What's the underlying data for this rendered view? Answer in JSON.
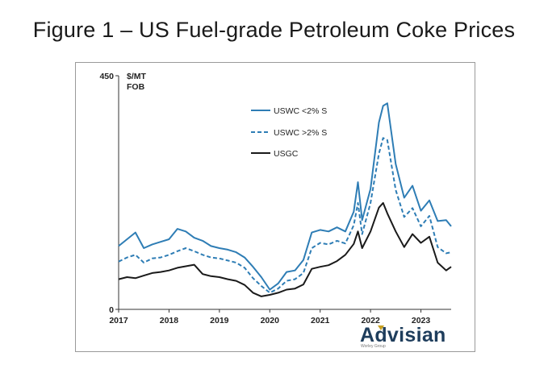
{
  "figure_title": "Figure 1 – US Fuel-grade Petroleum Coke Prices",
  "logo": {
    "text": "Advisian",
    "subtext": "Worley Group",
    "accent_color": "#c8a020",
    "color": "#1e3d5c"
  },
  "chart_data": {
    "type": "line",
    "title": "",
    "ylabel": "$/MT FOB",
    "ylabel_lines": [
      "$/MT",
      "FOB"
    ],
    "xlabel": "",
    "ylim": [
      0,
      450
    ],
    "y_ticks": [
      "0",
      "450"
    ],
    "x_ticks": [
      "2017",
      "2018",
      "2019",
      "2020",
      "2021",
      "2022",
      "2023"
    ],
    "xlim": [
      2017.0,
      2023.6
    ],
    "grid": false,
    "legend_position": "top-center",
    "x": [
      2017.0,
      2017.167,
      2017.333,
      2017.5,
      2017.667,
      2017.833,
      2018.0,
      2018.167,
      2018.333,
      2018.5,
      2018.667,
      2018.833,
      2019.0,
      2019.167,
      2019.333,
      2019.5,
      2019.667,
      2019.833,
      2020.0,
      2020.167,
      2020.333,
      2020.5,
      2020.667,
      2020.833,
      2021.0,
      2021.167,
      2021.333,
      2021.5,
      2021.667,
      2021.75,
      2021.833,
      2022.0,
      2022.167,
      2022.25,
      2022.333,
      2022.5,
      2022.667,
      2022.833,
      2023.0,
      2023.167,
      2023.333,
      2023.5,
      2023.6
    ],
    "series": [
      {
        "name": "USWC <2% S",
        "color": "#2e7db5",
        "dash": "solid",
        "values": [
          122,
          135,
          148,
          118,
          125,
          130,
          135,
          155,
          150,
          138,
          132,
          122,
          118,
          115,
          110,
          100,
          82,
          62,
          38,
          50,
          72,
          75,
          95,
          148,
          153,
          150,
          158,
          150,
          188,
          245,
          172,
          232,
          360,
          392,
          397,
          280,
          215,
          238,
          190,
          210,
          170,
          172,
          160
        ]
      },
      {
        "name": "USWC >2% S",
        "color": "#2e7db5",
        "dash": "dashed",
        "values": [
          92,
          100,
          105,
          90,
          98,
          100,
          105,
          112,
          118,
          112,
          105,
          100,
          98,
          94,
          90,
          80,
          60,
          45,
          32,
          40,
          55,
          58,
          70,
          118,
          128,
          125,
          132,
          127,
          162,
          205,
          145,
          205,
          300,
          330,
          326,
          230,
          178,
          195,
          160,
          180,
          120,
          108,
          110
        ]
      },
      {
        "name": "USGC",
        "color": "#1a1a1a",
        "dash": "solid",
        "values": [
          58,
          62,
          60,
          65,
          70,
          72,
          75,
          80,
          83,
          86,
          68,
          64,
          62,
          58,
          55,
          47,
          32,
          25,
          28,
          32,
          38,
          40,
          48,
          78,
          82,
          85,
          93,
          105,
          126,
          150,
          118,
          150,
          196,
          205,
          185,
          150,
          120,
          145,
          128,
          140,
          90,
          75,
          82
        ]
      }
    ]
  }
}
